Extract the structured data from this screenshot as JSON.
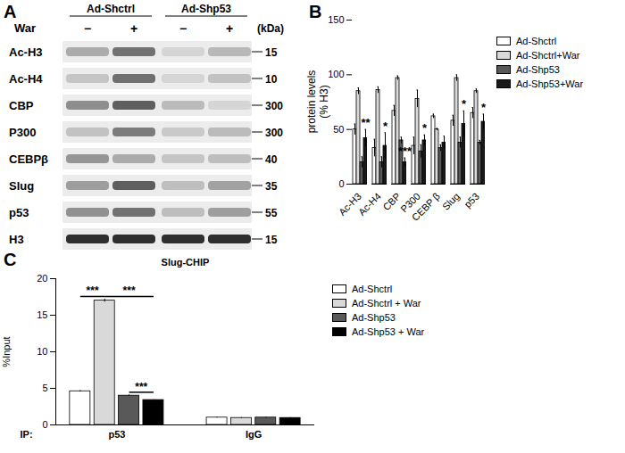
{
  "blot": {
    "panel": "A",
    "groups": [
      "Ad-Shctrl",
      "Ad-Shp53"
    ],
    "treatment": "War",
    "lanes": [
      "−",
      "+",
      "−",
      "+"
    ],
    "unit": "(kDa)",
    "rows": [
      {
        "label": "Ac-H3",
        "kda": 15
      },
      {
        "label": "Ac-H4",
        "kda": 10
      },
      {
        "label": "CBP",
        "kda": 300
      },
      {
        "label": "P300",
        "kda": 300
      },
      {
        "label": "CEBPβ",
        "kda": 40
      },
      {
        "label": "Slug",
        "kda": 35
      },
      {
        "label": "p53",
        "kda": 55
      },
      {
        "label": "H3",
        "kda": 15
      }
    ]
  },
  "chart_data": [
    {
      "panel": "B",
      "type": "bar",
      "ylabel": [
        "protein levels",
        "(% H3)"
      ],
      "categories": [
        "Ac-H3",
        "Ac-H4",
        "CBP",
        "P300",
        "CEBP β",
        "Slug",
        "p53"
      ],
      "series": [
        {
          "name": "Ad-Shctrl",
          "color": "#ffffff",
          "values": [
            50,
            33,
            67,
            35,
            62,
            58,
            65
          ],
          "errors": [
            5,
            8,
            5,
            8,
            2,
            5,
            5
          ]
        },
        {
          "name": "Ad-Shctrl+War",
          "color": "#d9d9d9",
          "values": [
            85,
            86,
            97,
            78,
            50,
            97,
            85
          ],
          "errors": [
            3,
            3,
            2,
            8,
            1,
            3,
            2
          ]
        },
        {
          "name": "Ad-Shp53",
          "color": "#595959",
          "values": [
            20,
            20,
            40,
            30,
            33,
            38,
            38
          ],
          "errors": [
            5,
            5,
            3,
            6,
            3,
            5,
            2
          ]
        },
        {
          "name": "Ad-Shp53+War",
          "color": "#1a1a1a",
          "values": [
            42,
            35,
            20,
            40,
            38,
            55,
            57
          ],
          "errors": [
            8,
            12,
            4,
            5,
            6,
            12,
            7
          ]
        }
      ],
      "annotations": [
        {
          "category": "Ac-H3",
          "series": "Ad-Shp53+War",
          "text": "**"
        },
        {
          "category": "Ac-H4",
          "series": "Ad-Shp53+War",
          "text": "*"
        },
        {
          "category": "CBP",
          "series": "Ad-Shp53+War",
          "text": "***"
        },
        {
          "category": "P300",
          "series": "Ad-Shp53+War",
          "text": "*"
        },
        {
          "category": "Slug",
          "series": "Ad-Shp53+War",
          "text": "*"
        },
        {
          "category": "p53",
          "series": "Ad-Shp53+War",
          "text": "*"
        }
      ],
      "ylim": [
        0,
        150
      ],
      "yticks": [
        0,
        50,
        100,
        150
      ],
      "legend": "right"
    },
    {
      "panel": "C",
      "type": "bar",
      "title": "Slug-CHIP",
      "xlabel": "IP:",
      "ylabel": "%Input",
      "categories": [
        "p53",
        "IgG"
      ],
      "series": [
        {
          "name": "Ad-Shctrl",
          "color": "#ffffff",
          "values": [
            4.6,
            1.0
          ],
          "errors": [
            0.1,
            0.05
          ]
        },
        {
          "name": "Ad-Shctrl + War",
          "color": "#d9d9d9",
          "values": [
            17.0,
            0.95
          ],
          "errors": [
            0.2,
            0.05
          ]
        },
        {
          "name": "Ad-Shp53",
          "color": "#595959",
          "values": [
            4.0,
            1.0
          ],
          "errors": [
            0.1,
            0.05
          ]
        },
        {
          "name": "Ad-Shp53 + War",
          "color": "#000000",
          "values": [
            3.4,
            0.95
          ],
          "errors": [
            0.05,
            0.05
          ]
        }
      ],
      "comparisons": [
        {
          "category": "p53",
          "from": "Ad-Shctrl",
          "to": "Ad-Shctrl + War",
          "text": "***"
        },
        {
          "category": "p53",
          "from": "Ad-Shctrl + War",
          "to": "Ad-Shp53 + War",
          "text": "***"
        },
        {
          "category": "p53",
          "from": "Ad-Shp53",
          "to": "Ad-Shp53 + War",
          "text": "***"
        }
      ],
      "ylim": [
        0,
        20
      ],
      "yticks": [
        0,
        5,
        10,
        15,
        20
      ],
      "legend": "right"
    }
  ]
}
